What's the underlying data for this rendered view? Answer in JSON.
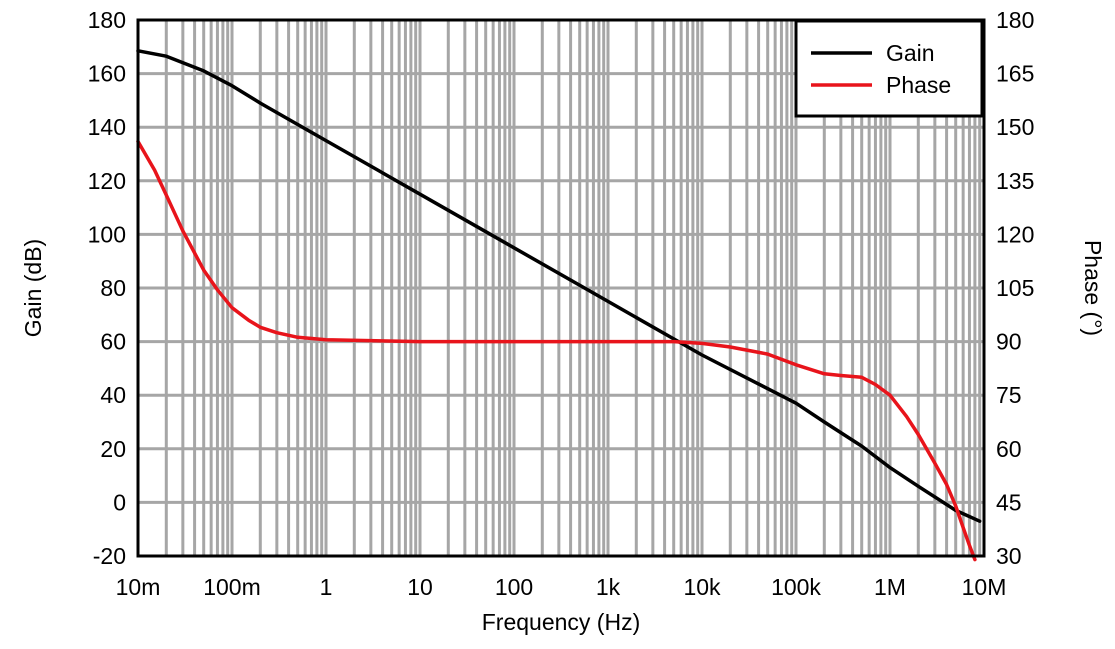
{
  "chart_data": {
    "type": "line",
    "title": "",
    "xlabel": "Frequency (Hz)",
    "ylabel": "Gain (dB)",
    "y2label": "Phase (°)",
    "x_scale": "log",
    "xlim": [
      0.01,
      10000000
    ],
    "ylim": [
      -20,
      180
    ],
    "y2lim": [
      30,
      180
    ],
    "x_ticks": [
      0.01,
      0.1,
      1,
      10,
      100,
      1000,
      10000,
      100000,
      1000000,
      10000000
    ],
    "x_tick_labels": [
      "10m",
      "100m",
      "1",
      "10",
      "100",
      "1k",
      "10k",
      "100k",
      "1M",
      "10M"
    ],
    "y_ticks": [
      -20,
      0,
      20,
      40,
      60,
      80,
      100,
      120,
      140,
      160,
      180
    ],
    "y_tick_labels": [
      "-20",
      "0",
      "20",
      "40",
      "60",
      "80",
      "100",
      "120",
      "140",
      "160",
      "180"
    ],
    "y2_ticks": [
      30,
      45,
      60,
      75,
      90,
      105,
      120,
      135,
      150,
      165,
      180
    ],
    "y2_tick_labels": [
      "30",
      "45",
      "60",
      "75",
      "90",
      "105",
      "120",
      "135",
      "150",
      "165",
      "180"
    ],
    "grid": true,
    "legend_position": "top-right",
    "series": [
      {
        "name": "Gain",
        "axis": "left",
        "color": "#000000",
        "x": [
          0.01,
          0.02,
          0.05,
          0.1,
          0.2,
          0.5,
          1,
          10,
          100,
          1000,
          5000,
          10000,
          100000,
          200000,
          500000,
          1000000,
          2000000,
          5000000,
          9000000
        ],
        "y": [
          168.5,
          166.5,
          161,
          155.5,
          149,
          141,
          135,
          115,
          95,
          75,
          61,
          55,
          37,
          30,
          21,
          13,
          6,
          -3,
          -7
        ]
      },
      {
        "name": "Phase",
        "axis": "right",
        "color": "#e8141b",
        "x": [
          0.01,
          0.015,
          0.02,
          0.03,
          0.05,
          0.07,
          0.1,
          0.15,
          0.2,
          0.3,
          0.5,
          1,
          10,
          100,
          1000,
          5000,
          10000,
          20000,
          50000,
          100000,
          200000,
          300000,
          500000,
          700000,
          1000000,
          1500000,
          2000000,
          3000000,
          4000000,
          5000000,
          6000000,
          7000000,
          8000000
        ],
        "y": [
          146,
          138,
          131,
          121,
          110,
          104.5,
          99.5,
          96,
          94,
          92.5,
          91.2,
          90.5,
          90,
          90,
          90,
          90,
          89.5,
          88.5,
          86.5,
          83.5,
          81,
          80.5,
          80,
          78,
          75,
          69,
          64,
          56,
          50,
          44,
          38,
          33,
          29
        ]
      }
    ]
  }
}
